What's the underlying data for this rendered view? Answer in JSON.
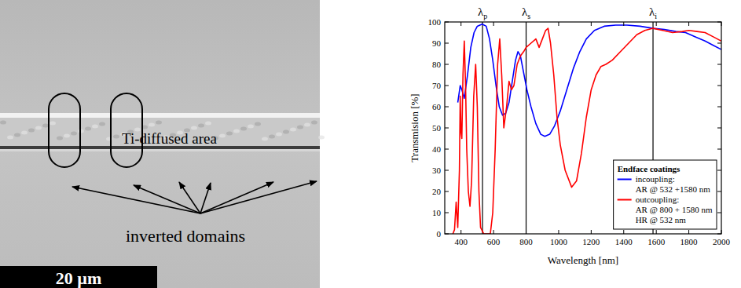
{
  "image_panel": {
    "region_label": "Ti-diffused area",
    "domains_label": "inverted domains",
    "scale_bar_label": "20 µm"
  },
  "chart_data": {
    "type": "line",
    "xlabel": "Wavelength [nm]",
    "ylabel": "Transmision [%]",
    "xlim": [
      300,
      2000
    ],
    "xticks": [
      400,
      600,
      800,
      1000,
      1200,
      1400,
      1600,
      1800,
      2000
    ],
    "ylim": [
      0,
      100
    ],
    "yticks": [
      0,
      10,
      20,
      30,
      40,
      50,
      60,
      70,
      80,
      90,
      100
    ],
    "grid": false,
    "legend": "lower right",
    "legend_title": "Endface coatings",
    "annotations": [
      {
        "text": "λ",
        "subscript": "p",
        "x": 532
      },
      {
        "text": "λ",
        "subscript": "s",
        "x": 800
      },
      {
        "text": "λ",
        "subscript": "i",
        "x": 1580
      }
    ],
    "series": [
      {
        "name": "incoupling:",
        "description": [
          "AR @ 532 +1580 nm"
        ],
        "color": "#0000ff",
        "x": [
          380,
          395,
          405,
          420,
          440,
          460,
          480,
          500,
          530,
          555,
          575,
          595,
          615,
          635,
          655,
          675,
          695,
          715,
          735,
          750,
          765,
          785,
          805,
          830,
          860,
          890,
          915,
          945,
          975,
          1010,
          1050,
          1090,
          1130,
          1170,
          1220,
          1280,
          1350,
          1420,
          1500,
          1580,
          1650,
          1720,
          1780,
          1840,
          1900,
          1950,
          2000
        ],
        "values": [
          62,
          70,
          68,
          64,
          75,
          88,
          95,
          98,
          99,
          98,
          92,
          82,
          70,
          60,
          56,
          57,
          62,
          72,
          82,
          86,
          84,
          76,
          68,
          60,
          52,
          47,
          46,
          47,
          51,
          58,
          68,
          78,
          86,
          92,
          96,
          98,
          98.5,
          98.5,
          98,
          97,
          96.5,
          95.5,
          95,
          93,
          91,
          89,
          87
        ]
      },
      {
        "name": "outcoupling:",
        "description": [
          "AR @ 800 + 1580 nm",
          "HR @ 532 nm"
        ],
        "color": "#ff0000",
        "x": [
          350,
          360,
          370,
          380,
          390,
          395,
          400,
          405,
          412,
          420,
          428,
          435,
          445,
          455,
          465,
          478,
          490,
          500,
          510,
          520,
          540,
          560,
          580,
          595,
          610,
          625,
          638,
          650,
          663,
          680,
          695,
          710,
          725,
          745,
          765,
          785,
          800,
          830,
          860,
          880,
          900,
          920,
          935,
          950,
          970,
          990,
          1010,
          1040,
          1080,
          1110,
          1140,
          1170,
          1200,
          1230,
          1260,
          1290,
          1330,
          1380,
          1430,
          1480,
          1530,
          1580,
          1640,
          1700,
          1760,
          1800,
          1850,
          1900,
          1950,
          2000
        ],
        "values": [
          0,
          2,
          15,
          3,
          30,
          65,
          48,
          45,
          75,
          91,
          70,
          40,
          20,
          13,
          25,
          65,
          80,
          60,
          20,
          3,
          0,
          0,
          0,
          10,
          40,
          80,
          92,
          75,
          50,
          60,
          72,
          68,
          70,
          80,
          84,
          86,
          88,
          90,
          92,
          88,
          92,
          96,
          97,
          90,
          75,
          55,
          42,
          30,
          22,
          25,
          38,
          55,
          68,
          75,
          79,
          80,
          82,
          86,
          90,
          94,
          96,
          97,
          96,
          95,
          95.5,
          96,
          95.5,
          95,
          93,
          91
        ]
      }
    ]
  }
}
